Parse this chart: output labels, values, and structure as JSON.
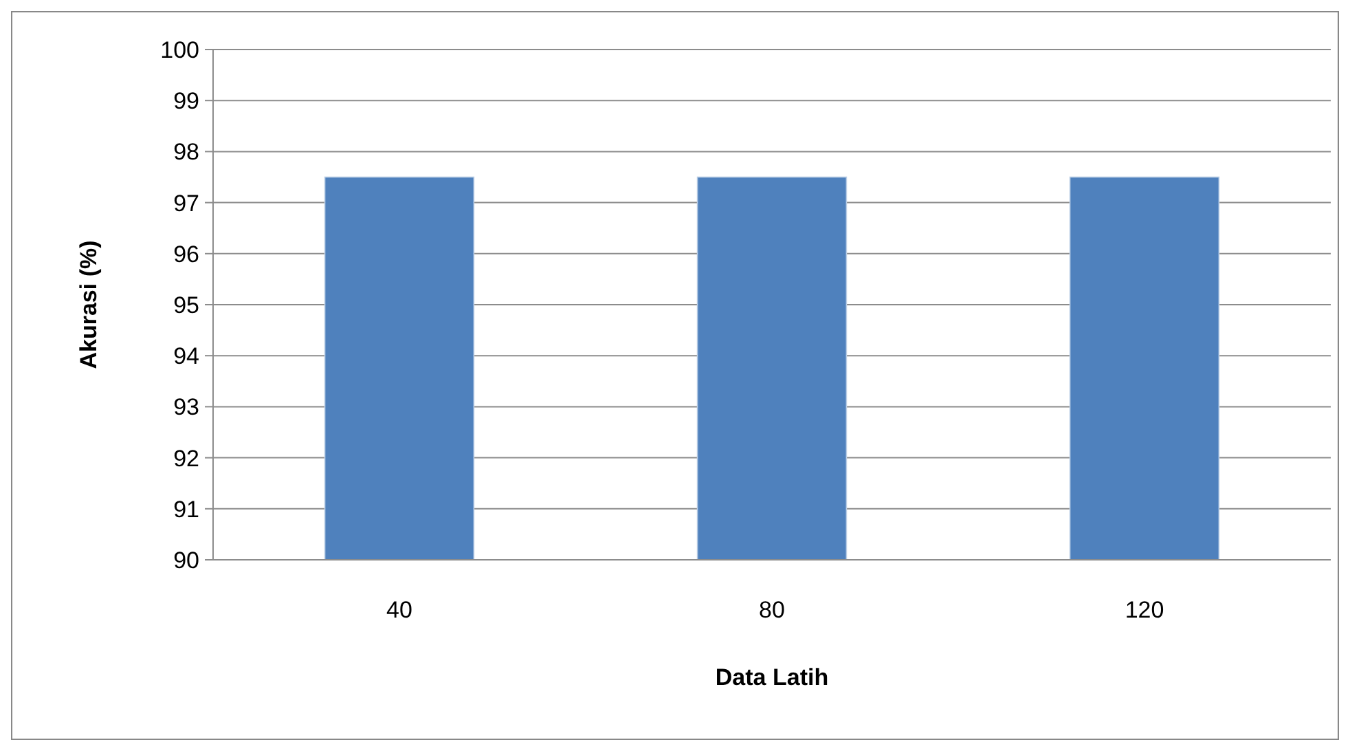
{
  "chart_data": {
    "type": "bar",
    "xlabel": "Data Latih",
    "ylabel": "Akurasi (%)",
    "categories": [
      "40",
      "80",
      "120"
    ],
    "values": [
      97.5,
      97.5,
      97.5
    ],
    "color": "#4f81bd",
    "ylim": [
      90,
      100
    ],
    "yticks": [
      90,
      91,
      92,
      93,
      94,
      95,
      96,
      97,
      98,
      99,
      100
    ],
    "grid": "y"
  }
}
